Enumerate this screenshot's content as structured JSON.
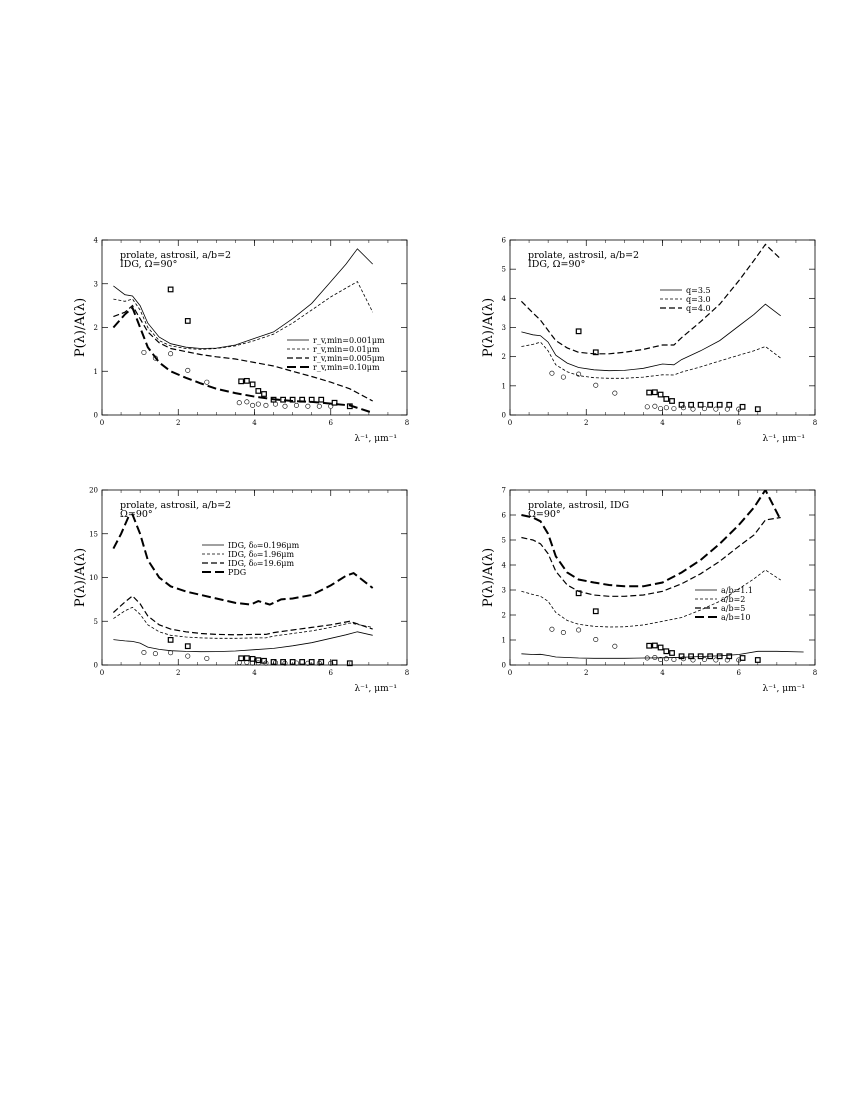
{
  "chart_data": [
    {
      "type": "line",
      "annotation_line1": "prolate, astrosil, a/b=2",
      "annotation_line2": "IDG, Ω=90°",
      "xlabel": "λ⁻¹, μm⁻¹",
      "ylabel": "P(λ)/A(λ)",
      "xlim": [
        0,
        8
      ],
      "ylim": [
        0,
        4
      ],
      "xticks": [
        "0",
        "2",
        "4",
        "6",
        "8"
      ],
      "yticks": [
        "0",
        "1",
        "2",
        "3",
        "4"
      ],
      "legend_position": "lower-right",
      "series": [
        {
          "name": "r_v,min=0.001μm",
          "style": "solid-thin",
          "x": [
            0.3,
            0.6,
            0.8,
            1.0,
            1.2,
            1.5,
            1.8,
            2.2,
            2.6,
            3.0,
            3.5,
            4.0,
            4.5,
            5.0,
            5.5,
            6.0,
            6.4,
            6.7,
            7.1
          ],
          "y": [
            2.95,
            2.75,
            2.72,
            2.5,
            2.1,
            1.78,
            1.63,
            1.55,
            1.52,
            1.53,
            1.6,
            1.75,
            1.9,
            2.2,
            2.55,
            3.05,
            3.45,
            3.8,
            3.45
          ]
        },
        {
          "name": "r_v,min=0.01μm",
          "style": "dash-short",
          "x": [
            0.3,
            0.6,
            0.8,
            1.0,
            1.2,
            1.5,
            1.8,
            2.2,
            2.6,
            3.0,
            3.5,
            4.0,
            4.5,
            5.0,
            5.5,
            6.0,
            6.4,
            6.7,
            7.1
          ],
          "y": [
            2.65,
            2.6,
            2.65,
            2.4,
            2.0,
            1.7,
            1.58,
            1.52,
            1.5,
            1.52,
            1.58,
            1.7,
            1.85,
            2.1,
            2.4,
            2.7,
            2.9,
            3.05,
            2.35
          ]
        },
        {
          "name": "r_v,min=0.005μm",
          "style": "dash-medium",
          "x": [
            0.3,
            0.6,
            0.8,
            1.0,
            1.2,
            1.5,
            1.8,
            2.2,
            2.6,
            3.0,
            3.5,
            4.0,
            4.5,
            5.0,
            5.5,
            6.0,
            6.5,
            7.1
          ],
          "y": [
            2.25,
            2.35,
            2.5,
            2.2,
            1.9,
            1.65,
            1.52,
            1.45,
            1.38,
            1.33,
            1.28,
            1.2,
            1.12,
            1.0,
            0.88,
            0.75,
            0.6,
            0.32
          ]
        },
        {
          "name": "r_v,min=0.10μm",
          "style": "dash-long-thick",
          "x": [
            0.3,
            0.6,
            0.8,
            1.0,
            1.2,
            1.5,
            1.8,
            2.2,
            2.6,
            3.0,
            3.5,
            4.0,
            4.5,
            5.0,
            5.5,
            6.0,
            6.5,
            7.1
          ],
          "y": [
            2.0,
            2.3,
            2.45,
            2.0,
            1.55,
            1.2,
            1.0,
            0.85,
            0.72,
            0.6,
            0.5,
            0.42,
            0.36,
            0.32,
            0.3,
            0.26,
            0.22,
            0.05
          ]
        }
      ],
      "points_squares": {
        "x": [
          1.8,
          2.25,
          3.65,
          3.8,
          3.95,
          4.1,
          4.25,
          4.5,
          4.75,
          5.0,
          5.25,
          5.5,
          5.75,
          6.1,
          6.5
        ],
        "y": [
          2.87,
          2.15,
          0.77,
          0.78,
          0.7,
          0.55,
          0.48,
          0.35,
          0.35,
          0.35,
          0.35,
          0.35,
          0.35,
          0.28,
          0.2
        ]
      },
      "points_circles": {
        "x": [
          1.1,
          1.4,
          1.8,
          2.25,
          2.75,
          3.6,
          3.8,
          3.95,
          4.1,
          4.3,
          4.55,
          4.8,
          5.1,
          5.4,
          5.7,
          6.0
        ],
        "y": [
          1.43,
          1.3,
          1.4,
          1.02,
          0.75,
          0.28,
          0.3,
          0.22,
          0.25,
          0.22,
          0.25,
          0.2,
          0.22,
          0.2,
          0.2,
          0.2
        ]
      }
    },
    {
      "type": "line",
      "annotation_line1": "prolate, astrosil, a/b=2",
      "annotation_line2": "IDG, Ω=90°",
      "xlabel": "λ⁻¹, μm⁻¹",
      "ylabel": "P(λ)/A(λ)",
      "xlim": [
        0,
        8
      ],
      "ylim": [
        0,
        6
      ],
      "xticks": [
        "0",
        "2",
        "4",
        "6",
        "8"
      ],
      "yticks": [
        "0",
        "1",
        "2",
        "3",
        "4",
        "5",
        "6"
      ],
      "legend_position": "upper-center",
      "series": [
        {
          "name": "q=3.5",
          "style": "solid-thin",
          "x": [
            0.3,
            0.6,
            0.8,
            1.0,
            1.2,
            1.5,
            1.8,
            2.2,
            2.6,
            3.0,
            3.5,
            4.0,
            4.3,
            4.5,
            5.0,
            5.5,
            6.0,
            6.4,
            6.7,
            7.1
          ],
          "y": [
            2.85,
            2.75,
            2.72,
            2.5,
            2.05,
            1.78,
            1.63,
            1.55,
            1.52,
            1.53,
            1.6,
            1.75,
            1.72,
            1.9,
            2.2,
            2.55,
            3.05,
            3.45,
            3.8,
            3.4
          ]
        },
        {
          "name": "q=3.0",
          "style": "dash-short",
          "x": [
            0.3,
            0.6,
            0.8,
            1.0,
            1.2,
            1.5,
            1.8,
            2.2,
            2.6,
            3.0,
            3.5,
            4.0,
            4.3,
            4.5,
            5.0,
            5.5,
            6.0,
            6.4,
            6.7,
            7.1
          ],
          "y": [
            2.35,
            2.42,
            2.5,
            2.2,
            1.72,
            1.48,
            1.35,
            1.28,
            1.26,
            1.26,
            1.3,
            1.38,
            1.37,
            1.47,
            1.65,
            1.85,
            2.05,
            2.2,
            2.35,
            1.95
          ]
        },
        {
          "name": "q=4.0",
          "style": "dash-medium",
          "x": [
            0.3,
            0.6,
            0.8,
            1.0,
            1.2,
            1.5,
            1.8,
            2.2,
            2.6,
            3.0,
            3.5,
            4.0,
            4.3,
            4.5,
            5.0,
            5.5,
            6.0,
            6.4,
            6.7,
            7.1
          ],
          "y": [
            3.9,
            3.5,
            3.25,
            2.9,
            2.55,
            2.3,
            2.15,
            2.1,
            2.1,
            2.15,
            2.25,
            2.4,
            2.4,
            2.65,
            3.2,
            3.8,
            4.6,
            5.3,
            5.85,
            5.35
          ]
        }
      ],
      "points_squares": {
        "x": [
          1.8,
          2.25,
          3.65,
          3.8,
          3.95,
          4.1,
          4.25,
          4.5,
          4.75,
          5.0,
          5.25,
          5.5,
          5.75,
          6.1,
          6.5
        ],
        "y": [
          2.87,
          2.15,
          0.77,
          0.78,
          0.7,
          0.55,
          0.48,
          0.35,
          0.35,
          0.35,
          0.35,
          0.35,
          0.35,
          0.28,
          0.2
        ]
      },
      "points_circles": {
        "x": [
          1.1,
          1.4,
          1.8,
          2.25,
          2.75,
          3.6,
          3.8,
          3.95,
          4.1,
          4.3,
          4.55,
          4.8,
          5.1,
          5.4,
          5.7,
          6.0
        ],
        "y": [
          1.43,
          1.3,
          1.4,
          1.02,
          0.75,
          0.28,
          0.3,
          0.22,
          0.25,
          0.22,
          0.25,
          0.2,
          0.22,
          0.2,
          0.2,
          0.2
        ]
      }
    },
    {
      "type": "line",
      "annotation_line1": "prolate, astrosil, a/b=2",
      "annotation_line2": "Ω=90°",
      "xlabel": "λ⁻¹, μm⁻¹",
      "ylabel": "P(λ)/A(λ)",
      "xlim": [
        0,
        8
      ],
      "ylim": [
        0,
        20
      ],
      "xticks": [
        "0",
        "2",
        "4",
        "6",
        "8"
      ],
      "yticks": [
        "0",
        "5",
        "10",
        "15",
        "20"
      ],
      "legend_position": "center-right",
      "series": [
        {
          "name": "IDG, δ₀=0.196μm",
          "style": "solid-thin",
          "x": [
            0.3,
            0.6,
            0.8,
            1.0,
            1.2,
            1.5,
            1.8,
            2.2,
            2.6,
            3.0,
            3.5,
            4.0,
            4.5,
            5.0,
            5.5,
            6.0,
            6.4,
            6.7,
            7.1
          ],
          "y": [
            2.9,
            2.75,
            2.7,
            2.5,
            2.05,
            1.78,
            1.63,
            1.55,
            1.52,
            1.53,
            1.6,
            1.75,
            1.9,
            2.2,
            2.55,
            3.05,
            3.45,
            3.8,
            3.4
          ]
        },
        {
          "name": "IDG, δ₀=1.96μm",
          "style": "dash-short",
          "x": [
            0.3,
            0.6,
            0.8,
            1.0,
            1.2,
            1.5,
            1.8,
            2.2,
            2.6,
            3.0,
            3.5,
            4.0,
            4.3,
            4.5,
            5.0,
            5.5,
            6.0,
            6.5,
            7.1
          ],
          "y": [
            5.3,
            6.2,
            6.6,
            5.8,
            4.6,
            3.8,
            3.4,
            3.2,
            3.1,
            3.05,
            3.05,
            3.1,
            3.1,
            3.3,
            3.6,
            3.9,
            4.3,
            4.8,
            4.3
          ]
        },
        {
          "name": "IDG, δ₀=19.6μm",
          "style": "dash-medium",
          "x": [
            0.3,
            0.6,
            0.8,
            1.0,
            1.2,
            1.5,
            1.8,
            2.2,
            2.6,
            3.0,
            3.5,
            4.0,
            4.3,
            4.5,
            5.0,
            5.5,
            6.0,
            6.5,
            7.1
          ],
          "y": [
            6.0,
            7.2,
            7.9,
            7.0,
            5.6,
            4.6,
            4.1,
            3.8,
            3.6,
            3.5,
            3.45,
            3.5,
            3.5,
            3.7,
            4.0,
            4.3,
            4.6,
            5.0,
            4.1
          ]
        },
        {
          "name": "PDG",
          "style": "dash-long-thick",
          "x": [
            0.3,
            0.5,
            0.7,
            0.8,
            1.0,
            1.2,
            1.5,
            1.8,
            2.2,
            2.6,
            3.0,
            3.5,
            3.9,
            4.1,
            4.4,
            4.7,
            5.0,
            5.5,
            6.0,
            6.4,
            6.6,
            7.1
          ],
          "y": [
            13.3,
            15.0,
            17.0,
            17.2,
            15.0,
            12.0,
            10.0,
            9.0,
            8.4,
            8.0,
            7.6,
            7.1,
            6.9,
            7.3,
            6.9,
            7.5,
            7.6,
            8.0,
            9.1,
            10.2,
            10.5,
            8.8
          ]
        }
      ],
      "points_squares": {
        "x": [
          1.8,
          2.25,
          3.65,
          3.8,
          3.95,
          4.1,
          4.25,
          4.5,
          4.75,
          5.0,
          5.25,
          5.5,
          5.75,
          6.1,
          6.5
        ],
        "y": [
          2.87,
          2.15,
          0.77,
          0.78,
          0.7,
          0.55,
          0.48,
          0.35,
          0.35,
          0.35,
          0.35,
          0.35,
          0.35,
          0.28,
          0.2
        ]
      },
      "points_circles": {
        "x": [
          1.1,
          1.4,
          1.8,
          2.25,
          2.75,
          3.6,
          3.8,
          3.95,
          4.1,
          4.3,
          4.55,
          4.8,
          5.1,
          5.4,
          5.7,
          6.0
        ],
        "y": [
          1.43,
          1.3,
          1.4,
          1.02,
          0.75,
          0.28,
          0.3,
          0.22,
          0.25,
          0.22,
          0.25,
          0.2,
          0.22,
          0.2,
          0.2,
          0.2
        ]
      }
    },
    {
      "type": "line",
      "annotation_line1": "prolate, astrosil, IDG",
      "annotation_line2": "Ω=90°",
      "xlabel": "λ⁻¹, μm⁻¹",
      "ylabel": "P(λ)/A(λ)",
      "xlim": [
        0,
        8
      ],
      "ylim": [
        0,
        7
      ],
      "xticks": [
        "0",
        "2",
        "4",
        "6",
        "8"
      ],
      "yticks": [
        "0",
        "1",
        "2",
        "3",
        "4",
        "5",
        "6",
        "7"
      ],
      "legend_position": "lower-right",
      "series": [
        {
          "name": "a/b=1.1",
          "style": "solid-thin",
          "x": [
            0.3,
            0.6,
            0.8,
            1.0,
            1.2,
            1.5,
            1.8,
            2.2,
            2.6,
            3.0,
            3.5,
            4.0,
            4.5,
            5.0,
            5.5,
            6.0,
            6.5,
            7.0,
            7.7
          ],
          "y": [
            0.45,
            0.42,
            0.43,
            0.38,
            0.32,
            0.3,
            0.28,
            0.27,
            0.27,
            0.27,
            0.28,
            0.29,
            0.31,
            0.34,
            0.37,
            0.42,
            0.55,
            0.55,
            0.52
          ]
        },
        {
          "name": "a/b=2",
          "style": "dash-short",
          "x": [
            0.3,
            0.6,
            0.8,
            1.0,
            1.2,
            1.5,
            1.8,
            2.2,
            2.6,
            3.0,
            3.5,
            4.0,
            4.5,
            5.0,
            5.5,
            6.0,
            6.4,
            6.7,
            7.1
          ],
          "y": [
            2.95,
            2.82,
            2.75,
            2.55,
            2.1,
            1.78,
            1.63,
            1.55,
            1.52,
            1.53,
            1.6,
            1.75,
            1.9,
            2.2,
            2.55,
            3.05,
            3.45,
            3.8,
            3.4
          ]
        },
        {
          "name": "a/b=5",
          "style": "dash-medium",
          "x": [
            0.3,
            0.6,
            0.8,
            1.0,
            1.2,
            1.5,
            1.8,
            2.2,
            2.6,
            3.0,
            3.5,
            4.0,
            4.5,
            5.0,
            5.5,
            6.0,
            6.4,
            6.7,
            7.1
          ],
          "y": [
            5.1,
            5.0,
            4.85,
            4.45,
            3.75,
            3.2,
            2.95,
            2.8,
            2.75,
            2.75,
            2.8,
            2.95,
            3.25,
            3.65,
            4.15,
            4.75,
            5.2,
            5.8,
            5.9
          ]
        },
        {
          "name": "a/b=10",
          "style": "dash-long-thick",
          "x": [
            0.3,
            0.6,
            0.8,
            1.0,
            1.2,
            1.5,
            1.8,
            2.2,
            2.6,
            3.0,
            3.5,
            4.0,
            4.5,
            5.0,
            5.5,
            6.0,
            6.4,
            6.7,
            7.1
          ],
          "y": [
            6.0,
            5.9,
            5.75,
            5.25,
            4.35,
            3.7,
            3.42,
            3.3,
            3.2,
            3.15,
            3.15,
            3.3,
            3.7,
            4.2,
            4.85,
            5.6,
            6.3,
            7.0,
            5.8
          ]
        }
      ],
      "points_squares": {
        "x": [
          1.8,
          2.25,
          3.65,
          3.8,
          3.95,
          4.1,
          4.25,
          4.5,
          4.75,
          5.0,
          5.25,
          5.5,
          5.75,
          6.1,
          6.5
        ],
        "y": [
          2.87,
          2.15,
          0.77,
          0.78,
          0.7,
          0.55,
          0.48,
          0.35,
          0.35,
          0.35,
          0.35,
          0.35,
          0.35,
          0.28,
          0.2
        ]
      },
      "points_circles": {
        "x": [
          1.1,
          1.4,
          1.8,
          2.25,
          2.75,
          3.6,
          3.8,
          3.95,
          4.1,
          4.3,
          4.55,
          4.8,
          5.1,
          5.4,
          5.7,
          6.0
        ],
        "y": [
          1.43,
          1.3,
          1.4,
          1.02,
          0.75,
          0.28,
          0.3,
          0.22,
          0.25,
          0.22,
          0.25,
          0.2,
          0.22,
          0.2,
          0.2,
          0.2
        ]
      }
    }
  ]
}
